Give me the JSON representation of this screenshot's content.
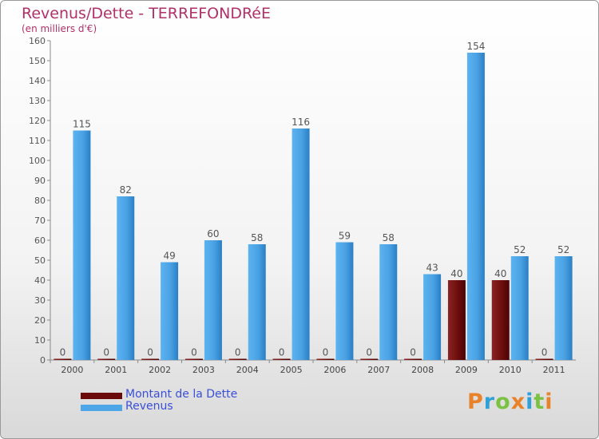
{
  "chart_data": {
    "type": "bar",
    "title": "Revenus/Dette - TERREFONDRéE",
    "subtitle": "(en milliers d'€)",
    "categories": [
      "2000",
      "2001",
      "2002",
      "2003",
      "2004",
      "2005",
      "2006",
      "2007",
      "2008",
      "2009",
      "2010",
      "2011"
    ],
    "series": [
      {
        "name": "Montant de la Dette",
        "values": [
          0,
          0,
          0,
          0,
          0,
          0,
          0,
          0,
          0,
          40,
          40,
          0
        ],
        "color": "#6b0a0a"
      },
      {
        "name": "Revenus",
        "values": [
          115,
          82,
          49,
          60,
          58,
          116,
          59,
          58,
          43,
          154,
          52,
          52
        ],
        "color": "#4da6e8"
      }
    ],
    "y_ticks": [
      "0",
      "10",
      "20",
      "30",
      "40",
      "50",
      "60",
      "70",
      "80",
      "90",
      "100",
      "110",
      "120",
      "130",
      "140",
      "150",
      "160"
    ],
    "ylim": [
      0,
      160
    ],
    "xlabel": "",
    "ylabel": "",
    "grid": false,
    "legend": "bottom-left"
  },
  "logo": {
    "text": "Proxiti",
    "colors": [
      "#e8832a",
      "#2fa0d8",
      "#7cc242",
      "#e8832a",
      "#2fa0d8",
      "#7cc242",
      "#e8832a"
    ]
  }
}
